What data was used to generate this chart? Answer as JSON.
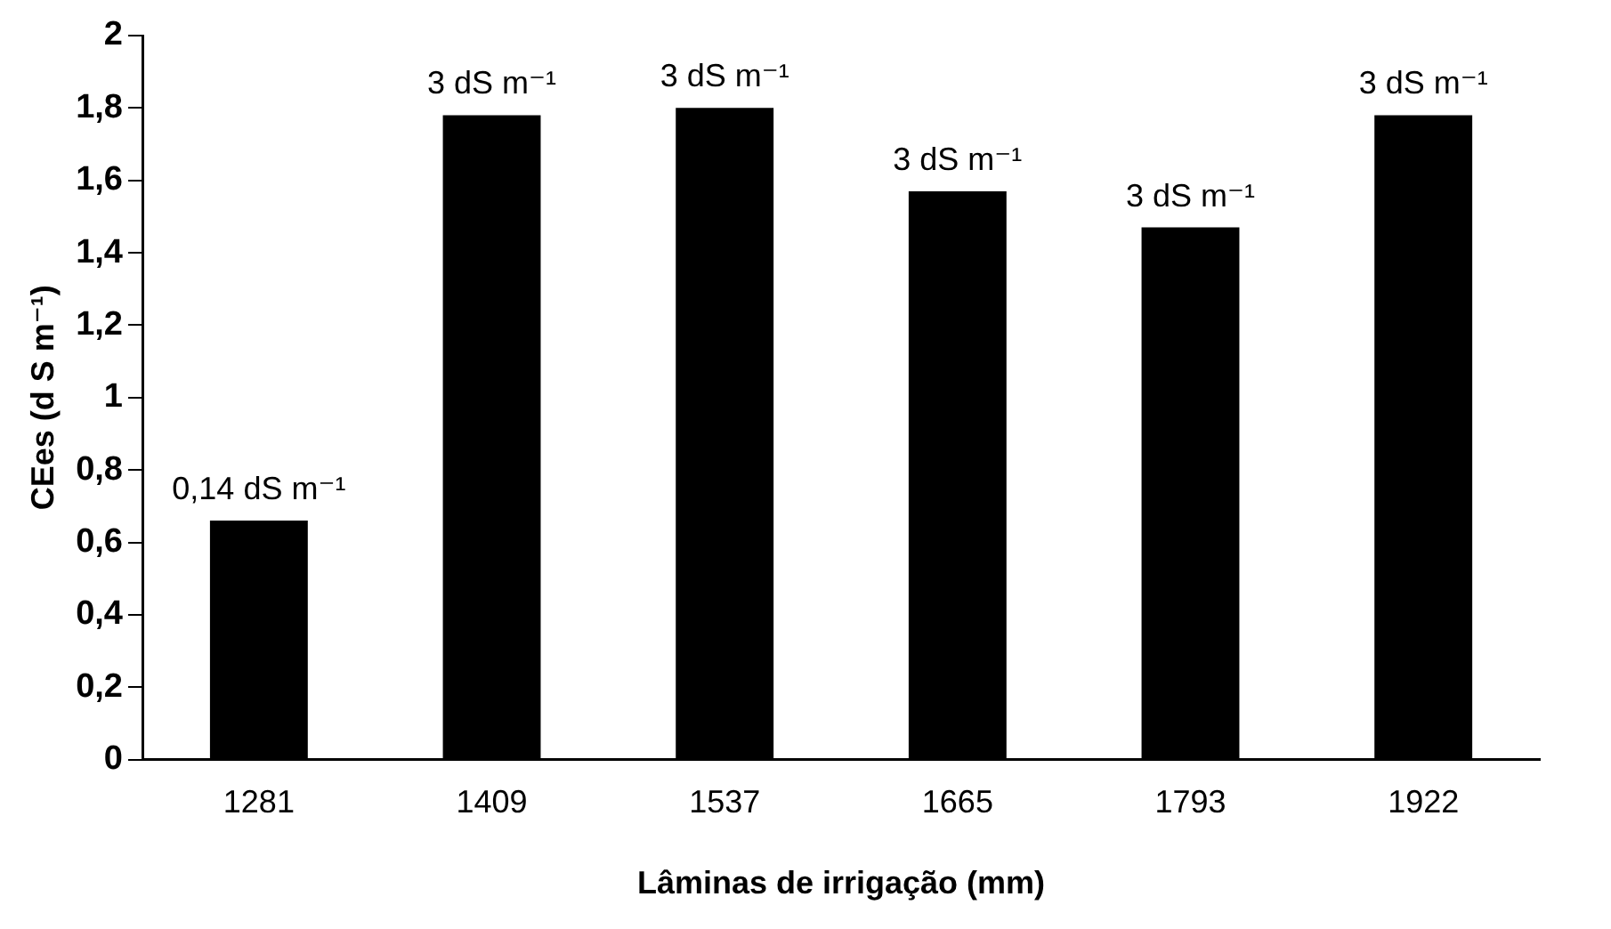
{
  "chart_data": {
    "type": "bar",
    "xlabel": "Lâminas de irrigação (mm)",
    "ylabel": "CEes (d S m⁻¹)",
    "categories": [
      "1281",
      "1409",
      "1537",
      "1665",
      "1793",
      "1922"
    ],
    "values": [
      0.66,
      1.78,
      1.8,
      1.57,
      1.47,
      1.78
    ],
    "annotations": [
      {
        "text": "0,14 dS m⁻¹",
        "x": "1281",
        "y": 0.66
      },
      {
        "text": "3 dS m⁻¹",
        "x": "1409",
        "y": 1.78
      },
      {
        "text": "3 dS m⁻¹",
        "x": "1537",
        "y": 1.8
      },
      {
        "text": "3 dS m⁻¹",
        "x": "1665",
        "y": 1.57
      },
      {
        "text": "3 dS m⁻¹",
        "x": "1793",
        "y": 1.47
      },
      {
        "text": "3 dS m⁻¹",
        "x": "1922",
        "y": 1.78
      }
    ],
    "color": "#000000",
    "ylim": [
      0,
      2
    ],
    "yticks": [
      0,
      {
        "value": 0.2,
        "label": "0,2"
      },
      {
        "value": 0.4,
        "label": "0,4"
      },
      {
        "value": 0.6,
        "label": "0,6"
      },
      {
        "value": 0.8,
        "label": "0,8"
      },
      1,
      {
        "value": 1.2,
        "label": "1,2"
      },
      {
        "value": 1.4,
        "label": "1,4"
      },
      {
        "value": 1.6,
        "label": "1,6"
      },
      {
        "value": 1.8,
        "label": "1,8"
      },
      2
    ],
    "grid": false,
    "legend": false
  }
}
